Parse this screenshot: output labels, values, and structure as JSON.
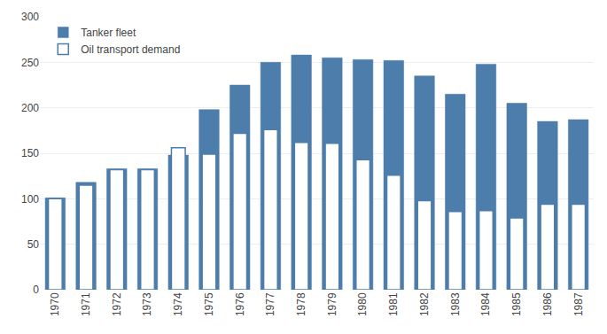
{
  "chart_data": {
    "type": "bar",
    "categories": [
      "1970",
      "1971",
      "1972",
      "1973",
      "1974",
      "1975",
      "1976",
      "1977",
      "1978",
      "1979",
      "1980",
      "1981",
      "1982",
      "1983",
      "1984",
      "1985",
      "1986",
      "1987"
    ],
    "series": [
      {
        "name": "Tanker fleet",
        "color": "#4d7dab",
        "values": [
          101,
          118,
          133,
          133,
          148,
          198,
          225,
          250,
          258,
          255,
          253,
          252,
          235,
          215,
          248,
          205,
          185,
          187
        ]
      },
      {
        "name": "Oil transport demand",
        "color": "#4d7dab",
        "marker": "outline",
        "values": [
          100,
          115,
          132,
          132,
          156,
          149,
          172,
          176,
          162,
          161,
          143,
          126,
          98,
          86,
          87,
          79,
          94,
          94
        ]
      }
    ],
    "ylim": [
      0,
      300
    ],
    "yticks": [
      0,
      50,
      100,
      150,
      200,
      250,
      300
    ],
    "grid": true,
    "legend": "upper left"
  }
}
